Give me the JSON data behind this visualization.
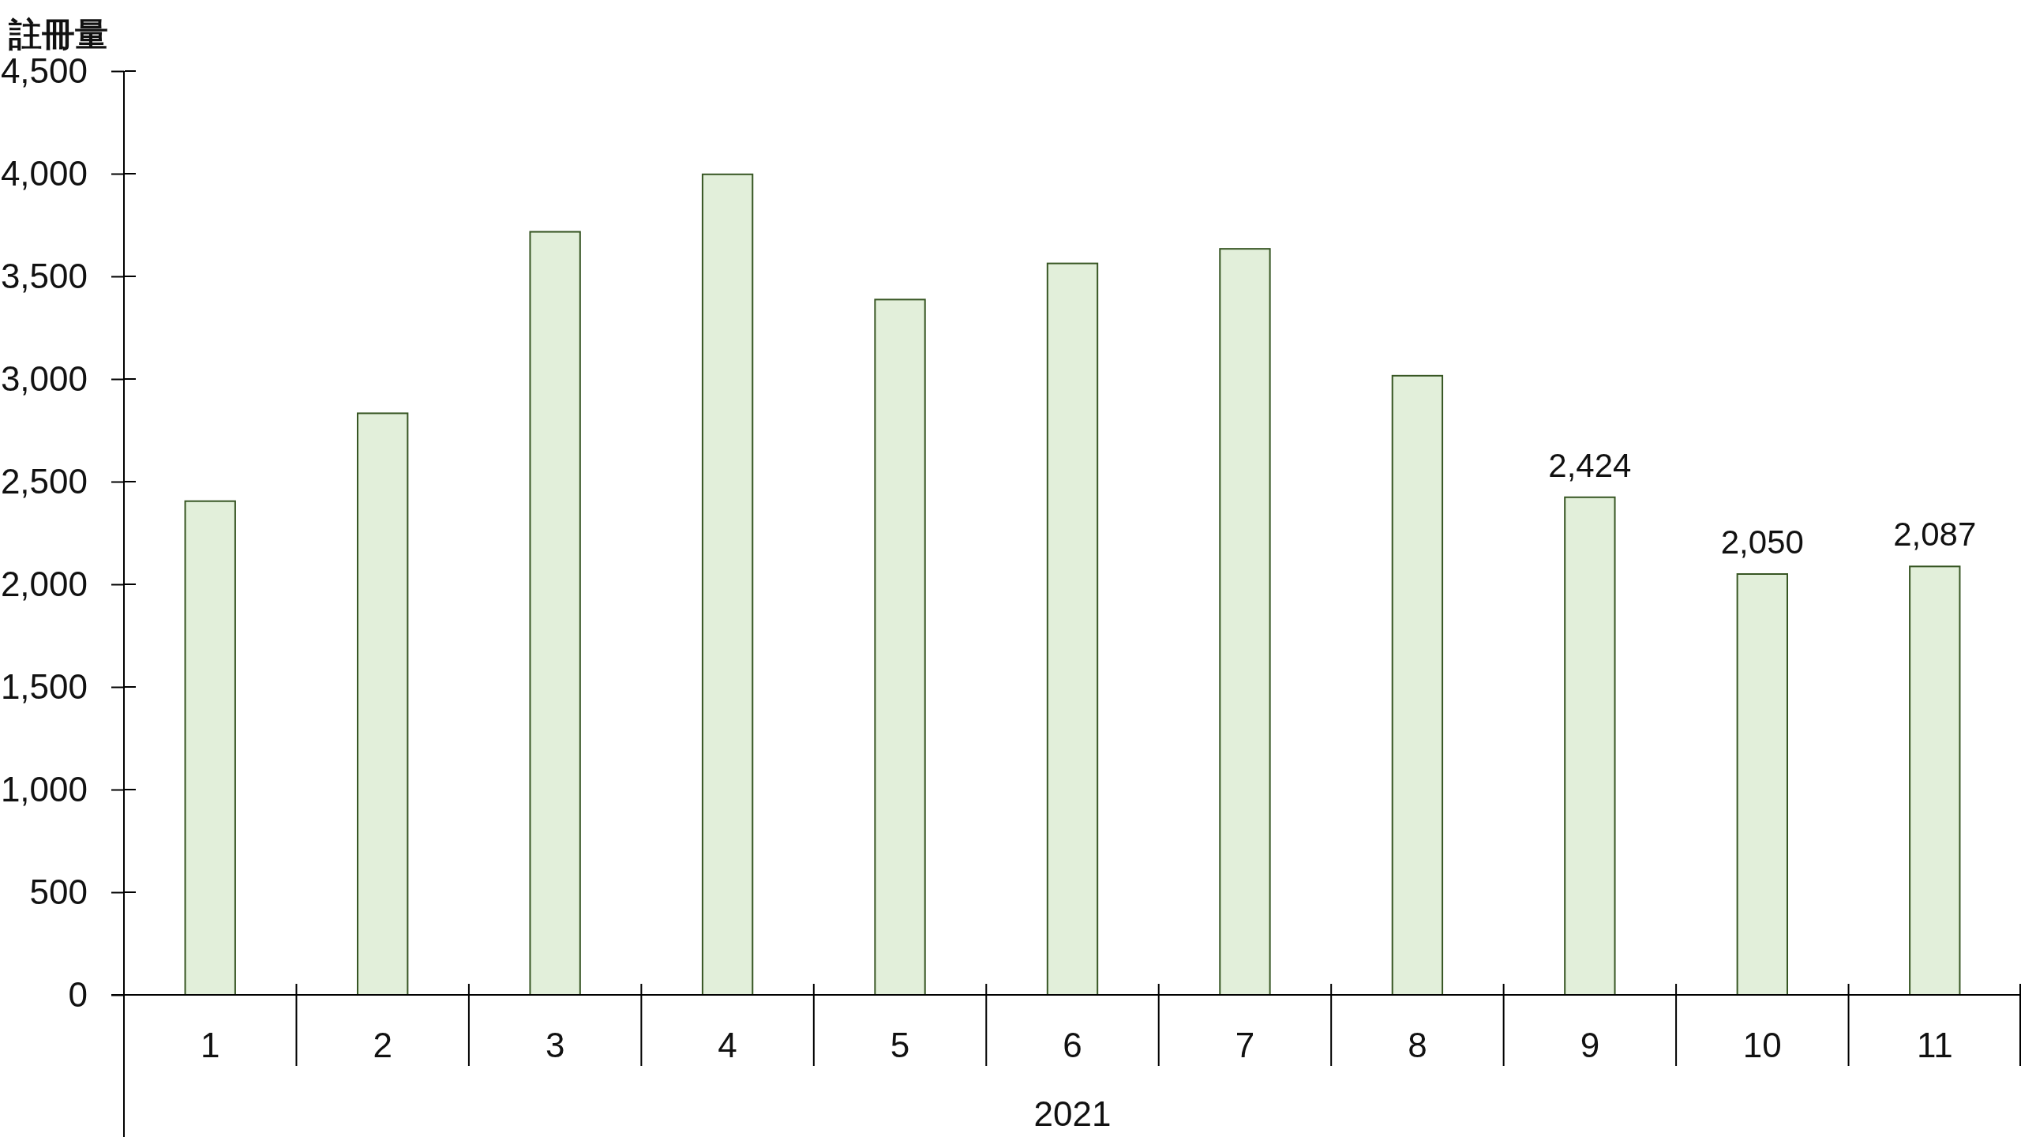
{
  "chart_data": {
    "type": "bar",
    "ylabel": "註冊量",
    "xlabel": "2021",
    "categories": [
      "1",
      "2",
      "3",
      "4",
      "5",
      "6",
      "7",
      "8",
      "9",
      "10",
      "11"
    ],
    "values": [
      2405,
      2833,
      3717,
      3997,
      3387,
      3563,
      3634,
      3016,
      2424,
      2050,
      2087
    ],
    "value_labels": [
      null,
      null,
      null,
      null,
      null,
      null,
      null,
      null,
      "2,424",
      "2,050",
      "2,087"
    ],
    "color": "#e2efda",
    "ylim": [
      0,
      4500
    ],
    "yticks": [
      0,
      500,
      {
        "value": 1000,
        "label": "1,000"
      },
      {
        "value": 1500,
        "label": "1,500"
      },
      {
        "value": 2000,
        "label": "2,000"
      },
      {
        "value": 2500,
        "label": "2,500"
      },
      {
        "value": 3000,
        "label": "3,000"
      },
      {
        "value": 3500,
        "label": "3,500"
      },
      {
        "value": 4000,
        "label": "4,000"
      },
      {
        "value": 4500,
        "label": "4,500"
      }
    ],
    "grid": false
  }
}
